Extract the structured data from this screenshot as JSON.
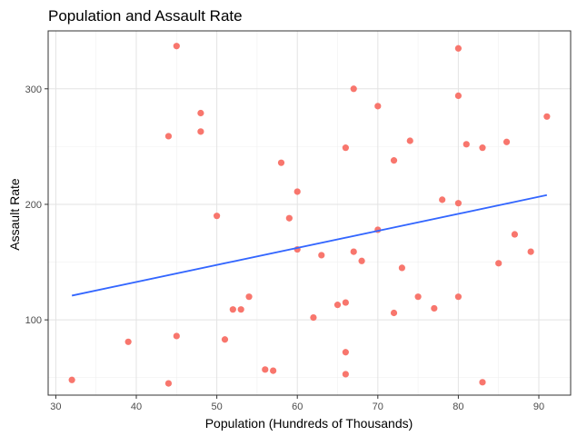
{
  "chart_data": {
    "type": "scatter",
    "title": "Population and Assault Rate",
    "xlabel": "Population (Hundreds of Thousands)",
    "ylabel": "Assault Rate",
    "xlim": [
      29.05,
      93.95
    ],
    "ylim": [
      34.85,
      350.15
    ],
    "xticks": [
      30,
      40,
      50,
      60,
      70,
      80,
      90
    ],
    "yticks": [
      100,
      200,
      300
    ],
    "xminor": [
      35,
      45,
      55,
      65,
      75,
      85
    ],
    "yminor": [
      50,
      150,
      250
    ],
    "grid": true,
    "point_color": "#F8766D",
    "line_color": "#3366FF",
    "points": [
      {
        "x": 32,
        "y": 48
      },
      {
        "x": 39,
        "y": 81
      },
      {
        "x": 44,
        "y": 45
      },
      {
        "x": 44,
        "y": 259
      },
      {
        "x": 45,
        "y": 337
      },
      {
        "x": 45,
        "y": 86
      },
      {
        "x": 48,
        "y": 279
      },
      {
        "x": 48,
        "y": 263
      },
      {
        "x": 50,
        "y": 190
      },
      {
        "x": 51,
        "y": 83
      },
      {
        "x": 52,
        "y": 109
      },
      {
        "x": 53,
        "y": 109
      },
      {
        "x": 54,
        "y": 120
      },
      {
        "x": 56,
        "y": 57
      },
      {
        "x": 57,
        "y": 56
      },
      {
        "x": 58,
        "y": 236
      },
      {
        "x": 59,
        "y": 188
      },
      {
        "x": 60,
        "y": 211
      },
      {
        "x": 60,
        "y": 161
      },
      {
        "x": 62,
        "y": 102
      },
      {
        "x": 63,
        "y": 156
      },
      {
        "x": 65,
        "y": 113
      },
      {
        "x": 66,
        "y": 249
      },
      {
        "x": 66,
        "y": 115
      },
      {
        "x": 66,
        "y": 72
      },
      {
        "x": 66,
        "y": 53
      },
      {
        "x": 67,
        "y": 300
      },
      {
        "x": 67,
        "y": 159
      },
      {
        "x": 68,
        "y": 151
      },
      {
        "x": 70,
        "y": 285
      },
      {
        "x": 70,
        "y": 178
      },
      {
        "x": 72,
        "y": 238
      },
      {
        "x": 72,
        "y": 106
      },
      {
        "x": 73,
        "y": 145
      },
      {
        "x": 74,
        "y": 255
      },
      {
        "x": 75,
        "y": 120
      },
      {
        "x": 77,
        "y": 110
      },
      {
        "x": 78,
        "y": 204
      },
      {
        "x": 80,
        "y": 335
      },
      {
        "x": 80,
        "y": 294
      },
      {
        "x": 80,
        "y": 201
      },
      {
        "x": 80,
        "y": 120
      },
      {
        "x": 81,
        "y": 252
      },
      {
        "x": 83,
        "y": 249
      },
      {
        "x": 83,
        "y": 46
      },
      {
        "x": 85,
        "y": 149
      },
      {
        "x": 86,
        "y": 254
      },
      {
        "x": 87,
        "y": 174
      },
      {
        "x": 89,
        "y": 159
      },
      {
        "x": 91,
        "y": 276
      }
    ],
    "fit_line": [
      {
        "x": 32,
        "y": 121
      },
      {
        "x": 91,
        "y": 208
      }
    ]
  }
}
